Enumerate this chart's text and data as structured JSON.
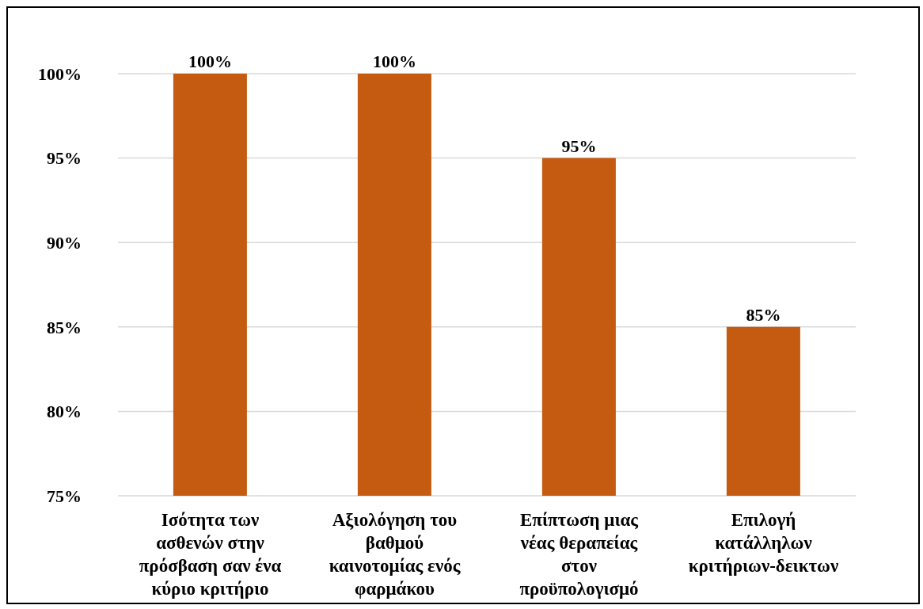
{
  "chart_data": {
    "type": "bar",
    "categories": [
      "Ισότητα των ασθενών στην πρόσβαση σαν ένα κύριο κριτήριο",
      "Αξιολόγηση του βαθμού καινοτομίας ενός φαρμάκου",
      "Επίπτωση μιας νέας θεραπείας στον προϋπολογισμό",
      "Επιλογή κατάλληλων κριτήριων-δεικτων"
    ],
    "values": [
      100,
      100,
      95,
      85
    ],
    "color": "#c55a11",
    "value_labels": [
      "100%",
      "100%",
      "95%",
      "85%"
    ],
    "ylim": [
      75,
      100
    ],
    "yticks": [
      {
        "value": 75,
        "label": "75%"
      },
      {
        "value": 80,
        "label": "80%"
      },
      {
        "value": 85,
        "label": "85%"
      },
      {
        "value": 90,
        "label": "90%"
      },
      {
        "value": 95,
        "label": "95%"
      },
      {
        "value": 100,
        "label": "100%"
      }
    ],
    "grid": "y"
  }
}
